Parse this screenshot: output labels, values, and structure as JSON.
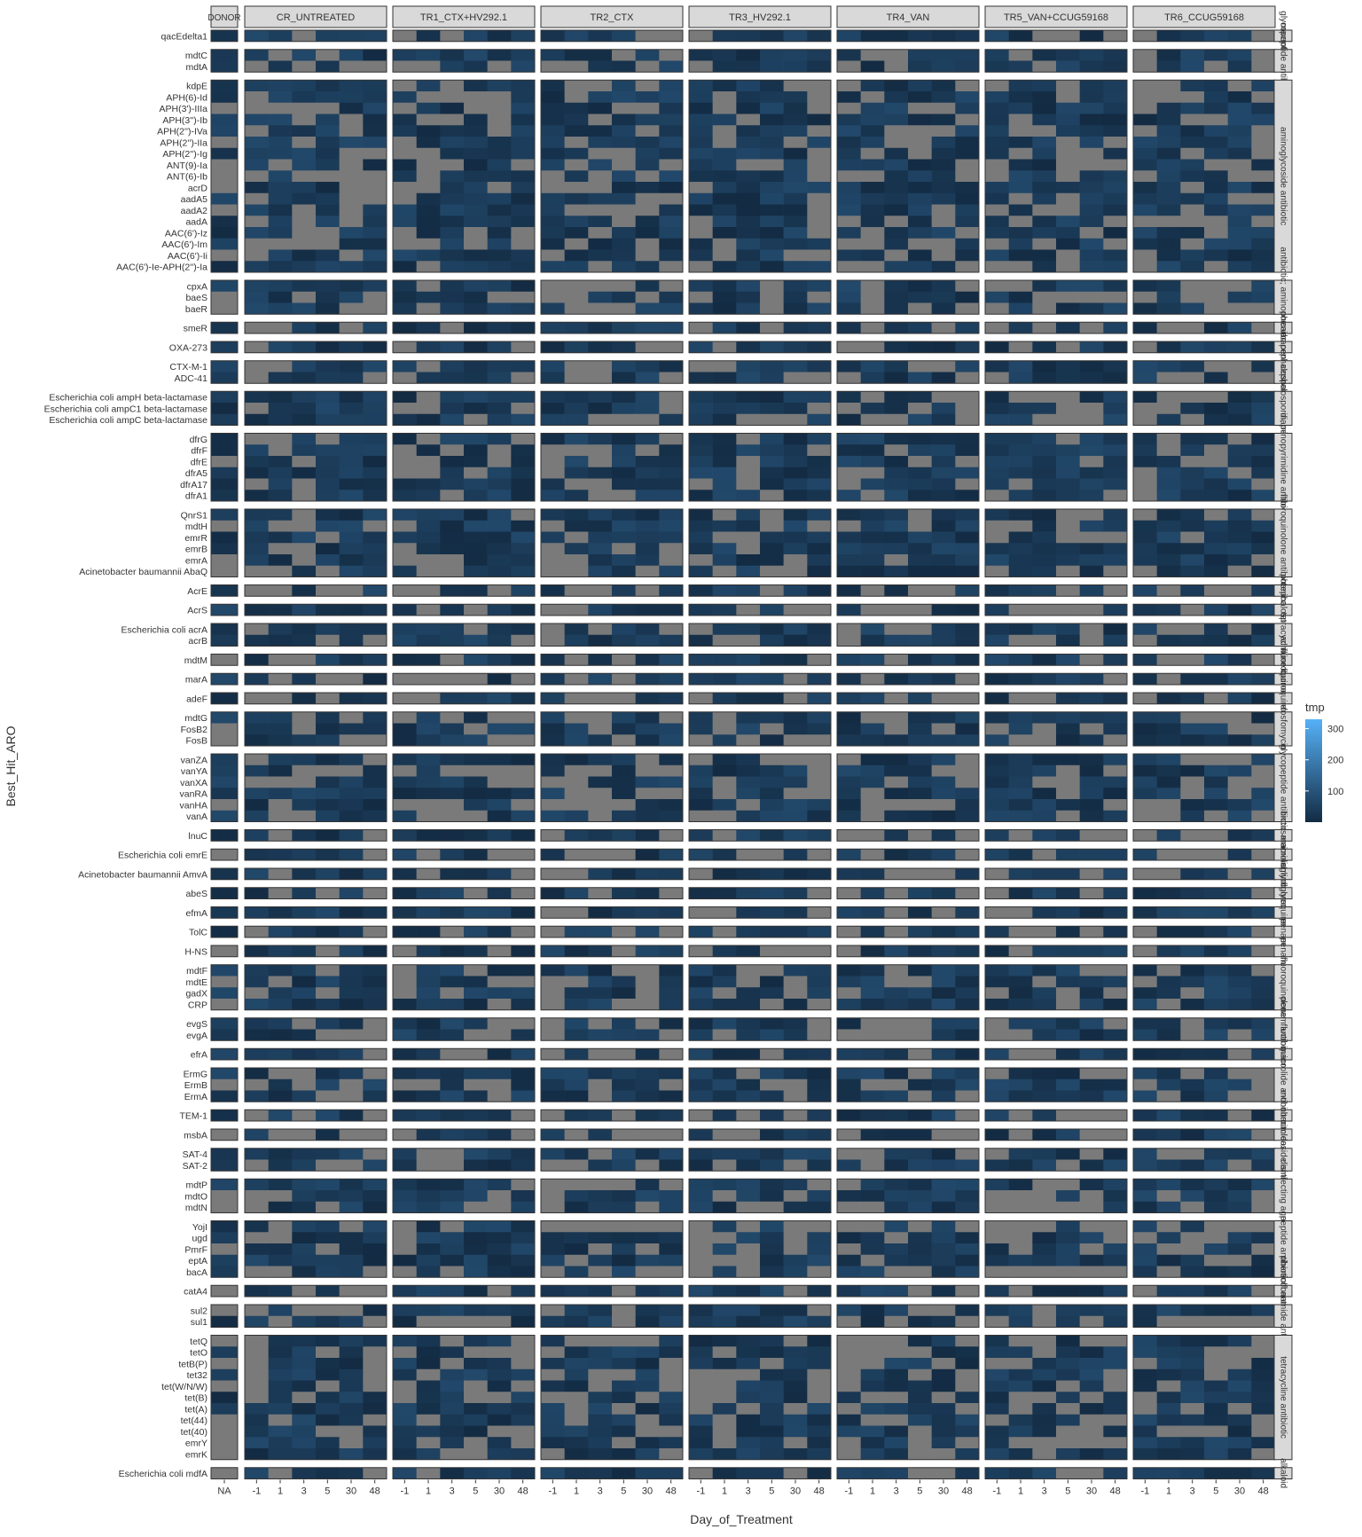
{
  "chart_data": {
    "type": "heatmap",
    "xlabel": "Day_of_Treatment",
    "ylabel": "Best_Hit_ARO",
    "missing_color": "#7a7a7a",
    "panels": [
      {
        "label": "DONOR",
        "days": [
          "NA"
        ]
      },
      {
        "label": "CR_UNTREATED",
        "days": [
          "-1",
          "1",
          "3",
          "5",
          "30",
          "48"
        ]
      },
      {
        "label": "TR1_CTX+HV292.1",
        "days": [
          "-1",
          "1",
          "3",
          "5",
          "30",
          "48"
        ]
      },
      {
        "label": "TR2_CTX",
        "days": [
          "-1",
          "1",
          "3",
          "5",
          "30",
          "48"
        ]
      },
      {
        "label": "TR3_HV292.1",
        "days": [
          "-1",
          "1",
          "3",
          "5",
          "30",
          "48"
        ]
      },
      {
        "label": "TR4_VAN",
        "days": [
          "-1",
          "1",
          "3",
          "5",
          "30",
          "48"
        ]
      },
      {
        "label": "TR5_VAN+CCUG59168",
        "days": [
          "-1",
          "1",
          "3",
          "5",
          "30",
          "48"
        ]
      },
      {
        "label": "TR6_CCUG59168",
        "days": [
          "-1",
          "1",
          "3",
          "5",
          "30",
          "48"
        ]
      }
    ],
    "facets": [
      {
        "label": "glycopeptide",
        "genes": [
          "qacEdelta1"
        ]
      },
      {
        "label": "macrolide antibiotic",
        "genes": [
          "mdtC",
          "mdtA"
        ]
      },
      {
        "label": "aminoglycoside antibiotic",
        "genes": [
          "kdpE",
          "APH(6)-Id",
          "APH(3')-IIIa",
          "APH(3'')-Ib",
          "APH(2'')-IVa",
          "APH(2'')-IIa",
          "APH(2'')-Ig",
          "ANT(9)-Ia",
          "ANT(6)-Ib",
          "acrD",
          "aadA5",
          "aadA2",
          "aadA",
          "AAC(6')-Iz",
          "AAC(6')-Im",
          "AAC(6')-Ii",
          "AAC(6')-Ie-APH(2'')-Ia"
        ]
      },
      {
        "label": "antibiotic; aminocoumarin",
        "genes": [
          "cpxA",
          "baeS",
          "baeR"
        ]
      },
      {
        "label": "phenicol",
        "genes": [
          "smeR"
        ]
      },
      {
        "label": "carbapenem",
        "genes": [
          "OXA-273"
        ]
      },
      {
        "label": "cephalosporin",
        "genes": [
          "CTX-M-1",
          "ADC-41"
        ]
      },
      {
        "label": "cephalosporin; penam",
        "genes": [
          "Escherichia coli ampH beta-lactamase",
          "Escherichia coli ampC1 beta-lactamase",
          "Escherichia coli ampC beta-lactamase"
        ]
      },
      {
        "label": "diaminopyrimidine antibiotic",
        "genes": [
          "dfrG",
          "dfrF",
          "dfrE",
          "dfrA5",
          "dfrA17",
          "dfrA1"
        ]
      },
      {
        "label": "fluoroquinolone antibiotic",
        "genes": [
          "QnrS1",
          "mdtH",
          "emrR",
          "emrB",
          "emrA",
          "Acinetobacter baumannii AbaQ"
        ]
      },
      {
        "label": "phenicol",
        "genes": [
          "AcrE"
        ]
      },
      {
        "label": "cephalosporin",
        "genes": [
          "AcrS"
        ]
      },
      {
        "label": "tetracycline",
        "genes": [
          "Escherichia coli acrA",
          "acrB"
        ]
      },
      {
        "label": "acridine dye",
        "genes": [
          "mdtM"
        ]
      },
      {
        "label": "fluoroquinolone",
        "genes": [
          "marA"
        ]
      },
      {
        "label": "fluoroquinolone",
        "genes": [
          "adeF"
        ]
      },
      {
        "label": "fosfomycin",
        "genes": [
          "mdtG",
          "FosB2",
          "FosB"
        ]
      },
      {
        "label": "glycopeptide antibiotic",
        "genes": [
          "vanZA",
          "vanYA",
          "vanXA",
          "vanRA",
          "vanHA",
          "vanA"
        ]
      },
      {
        "label": "lincosamide",
        "genes": [
          "lnuC"
        ]
      },
      {
        "label": "macrolide",
        "genes": [
          "Escherichia coli emrE"
        ]
      },
      {
        "label": "aminoglycoside",
        "genes": [
          "Acinetobacter baumannii AmvA"
        ]
      },
      {
        "label": "aminoglycoside",
        "genes": [
          "abeS"
        ]
      },
      {
        "label": "fluoroquinolone",
        "genes": [
          "efmA"
        ]
      },
      {
        "label": "penam",
        "genes": [
          "TolC"
        ]
      },
      {
        "label": "penam",
        "genes": [
          "H-NS"
        ]
      },
      {
        "label": "fluoroquinolone",
        "genes": [
          "mdtF",
          "mdtE",
          "gadX",
          "CRP"
        ]
      },
      {
        "label": "penam antibiotic",
        "genes": [
          "evgS",
          "evgA"
        ]
      },
      {
        "label": "fluoroquinolone",
        "genes": [
          "efrA"
        ]
      },
      {
        "label": "macrolide antibiotic",
        "genes": [
          "ErmG",
          "ErmB",
          "ErmA"
        ]
      },
      {
        "label": "monobactam",
        "genes": [
          "TEM-1"
        ]
      },
      {
        "label": "nitroimidazole",
        "genes": [
          "msbA"
        ]
      },
      {
        "label": "nucleoside antibiotic",
        "genes": [
          "SAT-4",
          "SAT-2"
        ]
      },
      {
        "label": "disinfecting agents",
        "genes": [
          "mdtP",
          "mdtO",
          "mdtN"
        ]
      },
      {
        "label": "peptide antibiotic",
        "genes": [
          "YojI",
          "ugd",
          "PmrF",
          "eptA",
          "bacA"
        ]
      },
      {
        "label": "phenicol antibiotic",
        "genes": [
          "catA4"
        ]
      },
      {
        "label": "sulfonamide antibiotic",
        "genes": [
          "sul2",
          "sul1"
        ]
      },
      {
        "label": "tetracycline antibiotic",
        "genes": [
          "tetQ",
          "tetO",
          "tetB(P)",
          "tet32",
          "tet(W/N/W)",
          "tet(B)",
          "tet(A)",
          "tet(44)",
          "tet(40)",
          "emrY",
          "emrK"
        ]
      },
      {
        "label": "alkaloid",
        "genes": [
          "Escherichia coli mdfA"
        ]
      }
    ],
    "colorbar": {
      "title": "tmp",
      "ticks": [
        100,
        200,
        300
      ],
      "range": [
        0,
        330
      ],
      "low_color": "#132b43",
      "high_color": "#56b1f7"
    }
  }
}
